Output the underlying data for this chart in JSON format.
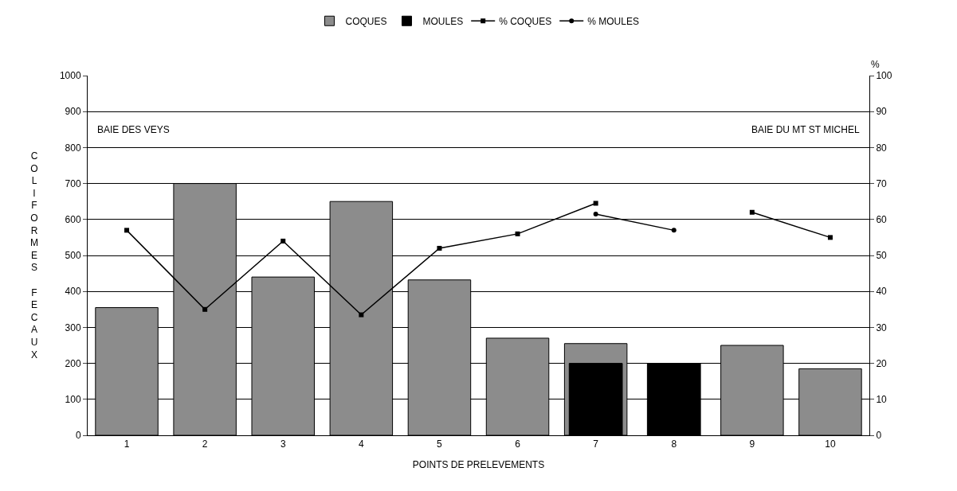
{
  "chart_data": {
    "type": "bar",
    "xlabel": "POINTS DE PRELEVEMENTS",
    "ylabel": "COLIFORMES FECAUX",
    "y2label": "%",
    "categories": [
      "1",
      "2",
      "3",
      "4",
      "5",
      "6",
      "7",
      "8",
      "9",
      "10"
    ],
    "series": [
      {
        "name": "COQUES",
        "color": "#8c8c8c",
        "values": [
          355,
          700,
          440,
          650,
          432,
          270,
          255,
          null,
          250,
          185
        ]
      },
      {
        "name": "MOULES",
        "color": "#000000",
        "values": [
          null,
          null,
          null,
          null,
          null,
          null,
          200,
          200,
          null,
          null
        ]
      },
      {
        "name": "% COQUES",
        "type": "line",
        "axis": "y2",
        "marker": "square",
        "color": "#000000",
        "values": [
          57,
          35,
          54,
          33.5,
          52,
          56,
          64.5,
          null,
          62,
          55
        ]
      },
      {
        "name": "% MOULES",
        "type": "line",
        "axis": "y2",
        "marker": "circle",
        "color": "#000000",
        "values": [
          null,
          null,
          null,
          null,
          null,
          null,
          61.5,
          57,
          null,
          null
        ]
      }
    ],
    "ylim": [
      0,
      1000
    ],
    "yticks": [
      0,
      100,
      200,
      300,
      400,
      500,
      600,
      700,
      800,
      900,
      1000
    ],
    "y2lim": [
      0,
      100
    ],
    "y2ticks": [
      0,
      10,
      20,
      30,
      40,
      50,
      60,
      70,
      80,
      90,
      100
    ],
    "grid": "y",
    "legend": "top",
    "annotations": [
      "BAIE DES VEYS",
      "BAIE DU MT ST MICHEL"
    ]
  }
}
